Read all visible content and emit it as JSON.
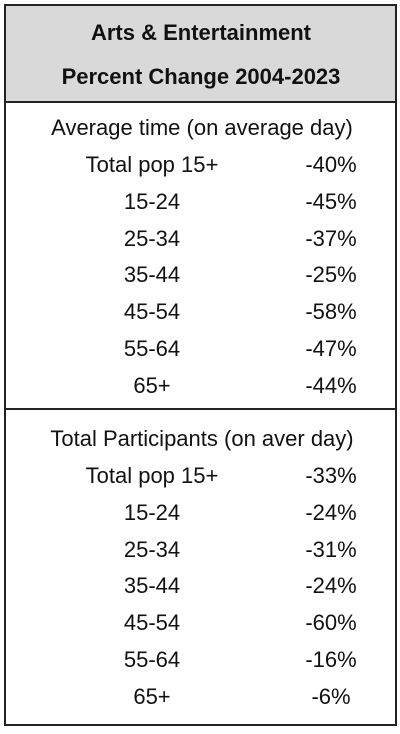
{
  "header": {
    "lines": [
      "Arts & Entertainment",
      "Percent Change 2004-2023"
    ]
  },
  "sections": [
    {
      "title": "Average time (on average day)",
      "rows": [
        [
          "Total pop 15+",
          "-40%"
        ],
        [
          "15-24",
          "-45%"
        ],
        [
          "25-34",
          "-37%"
        ],
        [
          "35-44",
          "-25%"
        ],
        [
          "45-54",
          "-58%"
        ],
        [
          "55-64",
          "-47%"
        ],
        [
          "65+",
          "-44%"
        ]
      ]
    },
    {
      "title": "Total Participants (on aver day)",
      "rows": [
        [
          "Total pop 15+",
          "-33%"
        ],
        [
          "15-24",
          "-24%"
        ],
        [
          "25-34",
          "-31%"
        ],
        [
          "35-44",
          "-24%"
        ],
        [
          "45-54",
          "-60%"
        ],
        [
          "55-64",
          "-16%"
        ],
        [
          "65+",
          "-6%"
        ]
      ]
    }
  ]
}
